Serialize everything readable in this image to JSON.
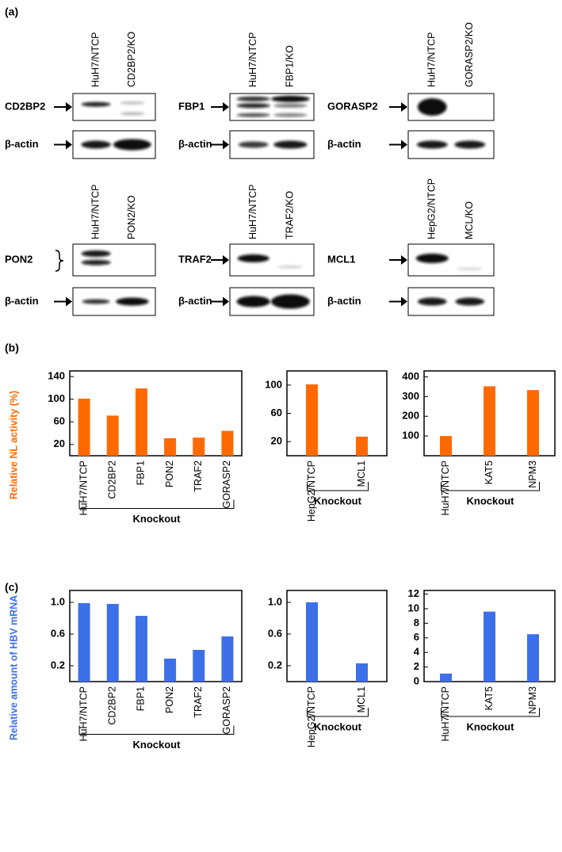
{
  "panel_labels": [
    "(a)",
    "(b)",
    "(c)"
  ],
  "blots": [
    {
      "lanes": [
        "HuH7/NTCP",
        "CD2BP2/KO"
      ],
      "target": "CD2BP2",
      "loading": "β-actin"
    },
    {
      "lanes": [
        "HuH7/NTCP",
        "FBP1/KO"
      ],
      "target": "FBP1",
      "loading": "β-actin"
    },
    {
      "lanes": [
        "HuH7/NTCP",
        "GORASP2/KO"
      ],
      "target": "GORASP2",
      "loading": "β-actin"
    },
    {
      "lanes": [
        "HuH7/NTCP",
        "PON2/KO"
      ],
      "target": "PON2",
      "loading": "β-actin"
    },
    {
      "lanes": [
        "HuH7/NTCP",
        "TRAF2/KO"
      ],
      "target": "TRAF2",
      "loading": "β-actin"
    },
    {
      "lanes": [
        "HepG2/NTCP",
        "MCL/KO"
      ],
      "target": "MCL1",
      "loading": "β-actin"
    }
  ],
  "chart_data": [
    {
      "type": "bar",
      "y_label": "Relative NL activity (%)",
      "categories": [
        "HuH7/NTCP",
        "CD2BP2",
        "FBP1",
        "PON2",
        "TRAF2",
        "GORASP2"
      ],
      "group_label": "Knockout",
      "values": [
        101,
        71,
        119,
        31,
        32,
        44
      ],
      "color": "#ff6a00",
      "ylim": [
        0,
        150
      ],
      "yticks": [
        20,
        60,
        100,
        140
      ]
    },
    {
      "type": "bar",
      "categories": [
        "HepG2/NTCP",
        "MCL1"
      ],
      "group_label": "Knockout",
      "values": [
        101,
        27
      ],
      "color": "#ff6a00",
      "ylim": [
        0,
        120
      ],
      "yticks": [
        20,
        60,
        100
      ]
    },
    {
      "type": "bar",
      "categories": [
        "HuH7/NTCP",
        "KAT5",
        "NPM3"
      ],
      "group_label": "Knockout",
      "values": [
        100,
        352,
        333
      ],
      "color": "#ff6a00",
      "ylim": [
        0,
        430
      ],
      "yticks": [
        100,
        200,
        300,
        400
      ]
    },
    {
      "type": "bar",
      "y_label": "Relative amount of HBV mRNA",
      "categories": [
        "HuH7/NTCP",
        "CD2BP2",
        "FBP1",
        "PON2",
        "TRAF2",
        "GORASP2"
      ],
      "group_label": "Knockout",
      "values": [
        0.99,
        0.98,
        0.83,
        0.29,
        0.4,
        0.57
      ],
      "color": "#3d6fe8",
      "ylim": [
        0,
        1.15
      ],
      "yticks": [
        0.2,
        0.6,
        {
          "value": 1,
          "label": "1.0"
        }
      ]
    },
    {
      "type": "bar",
      "categories": [
        "HepG2/NTCP",
        "MCL1"
      ],
      "group_label": "Knockout",
      "values": [
        1,
        0.23
      ],
      "color": "#3d6fe8",
      "ylim": [
        0,
        1.15
      ],
      "yticks": [
        0.2,
        0.6,
        {
          "value": 1,
          "label": "1.0"
        }
      ]
    },
    {
      "type": "bar",
      "categories": [
        "HuH7/NTCP",
        "KAT5",
        "NPM3"
      ],
      "group_label": "Knockout",
      "values": [
        1.1,
        9.6,
        6.5
      ],
      "color": "#3d6fe8",
      "ylim": [
        0,
        12.5
      ],
      "yticks": [
        0,
        2,
        4,
        6,
        8,
        10,
        12
      ]
    }
  ]
}
